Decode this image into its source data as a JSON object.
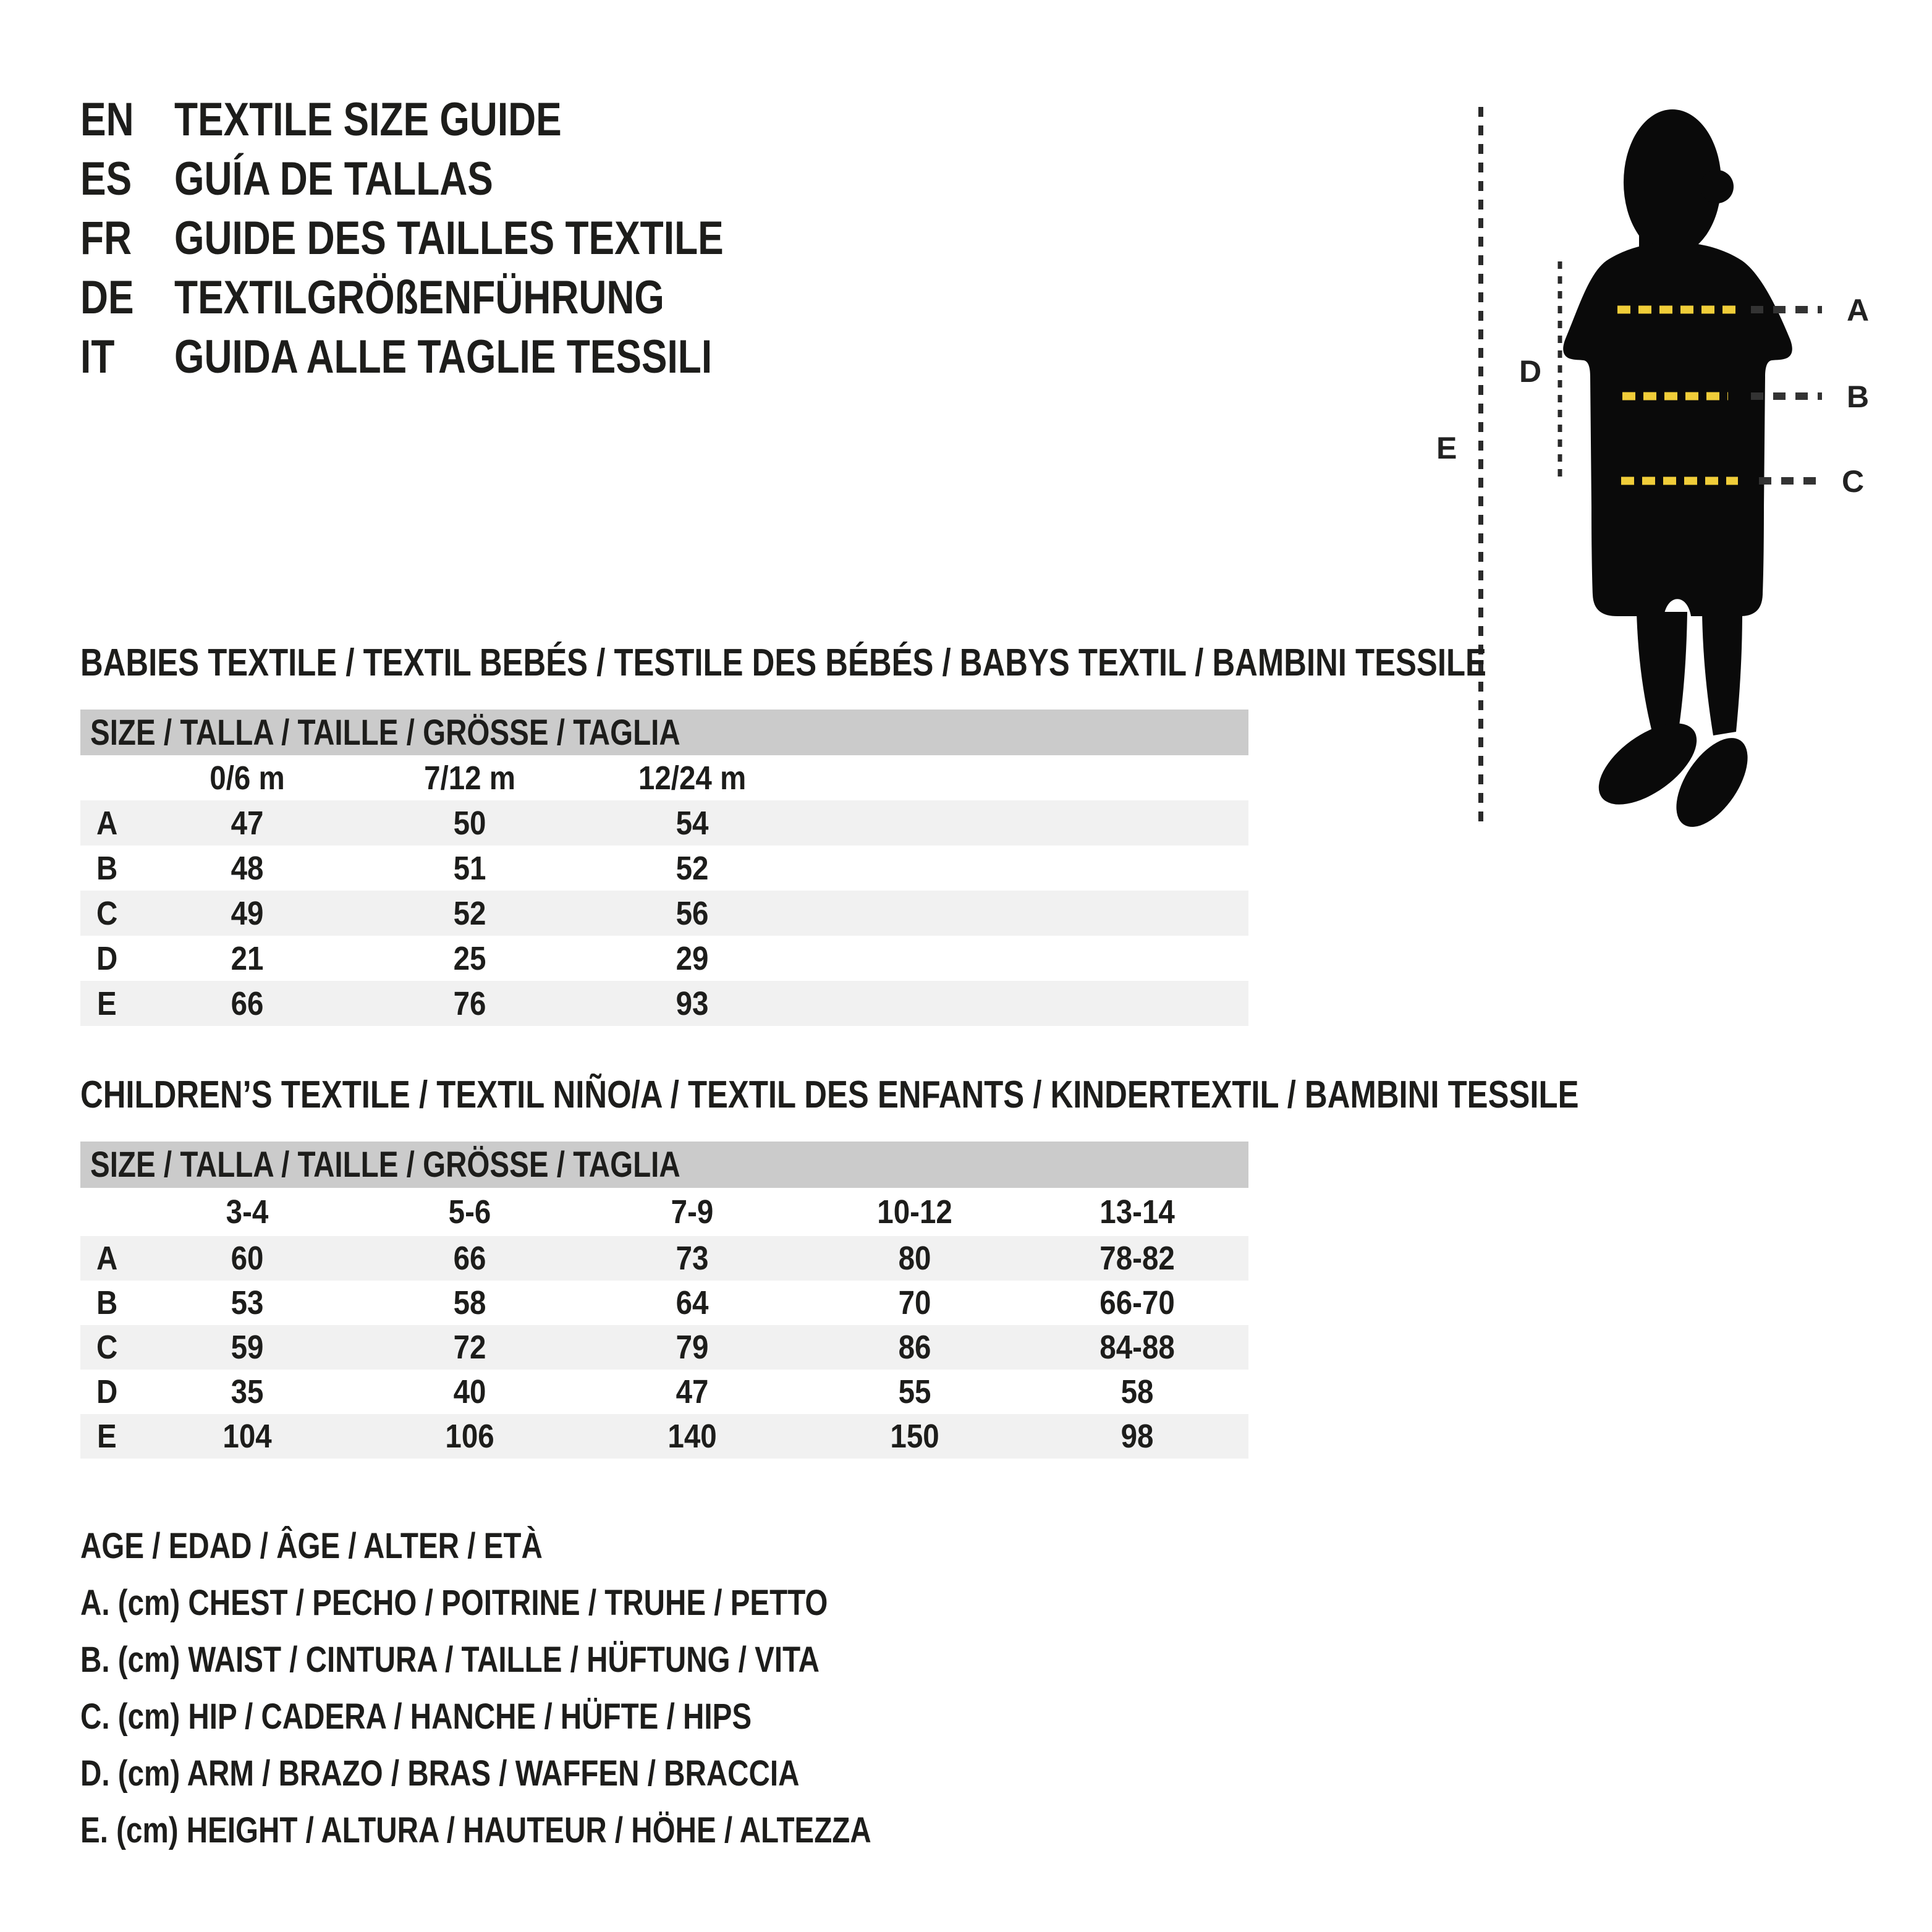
{
  "header": {
    "items": [
      {
        "code": "EN",
        "title": "TEXTILE SIZE GUIDE"
      },
      {
        "code": "ES",
        "title": "GUÍA DE TALLAS"
      },
      {
        "code": "FR",
        "title": "GUIDE DES TAILLES TEXTILE"
      },
      {
        "code": "DE",
        "title": "TEXTILGRÖßENFÜHRUNG"
      },
      {
        "code": "IT",
        "title": "GUIDA ALLE TAGLIE TESSILI"
      }
    ]
  },
  "figure": {
    "measure_labels": [
      "A",
      "B",
      "C",
      "D",
      "E"
    ],
    "colors": {
      "silhouette": "#0a0a0a",
      "dash_yellow": "#f0cd39",
      "dash_dark": "#333333",
      "dash_line": "#2a2a2a",
      "label_text": "#222222"
    }
  },
  "babies_section": {
    "title": "BABIES TEXTILE / TEXTIL BEBÉS / TESTILE DES BÉBÉS / BABYS TEXTIL / BAMBINI TESSILE",
    "size_header": "SIZE / TALLA / TAILLE / GRÖSSE / TAGLIA",
    "columns": [
      "0/6 m",
      "7/12 m",
      "12/24 m"
    ],
    "rows": [
      {
        "label": "A",
        "values": [
          "47",
          "50",
          "54"
        ]
      },
      {
        "label": "B",
        "values": [
          "48",
          "51",
          "52"
        ]
      },
      {
        "label": "C",
        "values": [
          "49",
          "52",
          "56"
        ]
      },
      {
        "label": "D",
        "values": [
          "21",
          "25",
          "29"
        ]
      },
      {
        "label": "E",
        "values": [
          "66",
          "76",
          "93"
        ]
      }
    ]
  },
  "children_section": {
    "title": "CHILDREN’S TEXTILE / TEXTIL NIÑO/A / TEXTIL DES ENFANTS / KINDERTEXTIL / BAMBINI TESSILE",
    "size_header": "SIZE / TALLA / TAILLE / GRÖSSE / TAGLIA",
    "columns": [
      "3-4",
      "5-6",
      "7-9",
      "10-12",
      "13-14"
    ],
    "rows": [
      {
        "label": "A",
        "values": [
          "60",
          "66",
          "73",
          "80",
          "78-82"
        ]
      },
      {
        "label": "B",
        "values": [
          "53",
          "58",
          "64",
          "70",
          "66-70"
        ]
      },
      {
        "label": "C",
        "values": [
          "59",
          "72",
          "79",
          "86",
          "84-88"
        ]
      },
      {
        "label": "D",
        "values": [
          "35",
          "40",
          "47",
          "55",
          "58"
        ]
      },
      {
        "label": "E",
        "values": [
          "104",
          "106",
          "140",
          "150",
          "98"
        ]
      }
    ]
  },
  "legend": {
    "lines": [
      "AGE / EDAD / ÂGE / ALTER / ETÀ",
      "A. (cm) CHEST / PECHO / POITRINE / TRUHE / PETTO",
      "B. (cm) WAIST / CINTURA / TAILLE / HÜFTUNG / VITA",
      "C. (cm) HIP / CADERA / HANCHE / HÜFTE / HIPS",
      "D. (cm) ARM / BRAZO / BRAS / WAFFEN / BRACCIA",
      "E. (cm) HEIGHT / ALTURA / HAUTEUR / HÖHE / ALTEZZA"
    ]
  },
  "colors": {
    "table_header_bg": "#cbcbcb",
    "row_alt_bg": "#f1f1f1",
    "text": "#1d1d1b"
  }
}
